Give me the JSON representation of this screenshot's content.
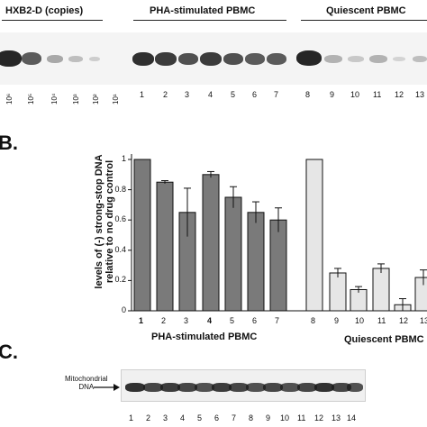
{
  "panelA": {
    "hdr_hxb2": "HXB2-D (copies)",
    "hdr_pha": "PHA-stimulated PBMC",
    "hdr_quiescent": "Quiescent PBMC",
    "standards": [
      "10⁶",
      "10⁵",
      "10⁴",
      "10³",
      "10²",
      "10¹"
    ],
    "lanes": [
      "1",
      "2",
      "3",
      "4",
      "5",
      "6",
      "7",
      "8",
      "9",
      "10",
      "11",
      "12",
      "13"
    ]
  },
  "panelB": {
    "label": "B.",
    "ylabel_line1": "levels of (-) strong-stop DNA",
    "ylabel_line2": "relative to no drug control",
    "group1": "PHA-stimulated PBMC",
    "group2": "Quiescent PBMC"
  },
  "panelC": {
    "label": "C.",
    "mito_line1": "Mitochondrial",
    "mito_line2": "DNA",
    "lanes": [
      "1",
      "2",
      "3",
      "4",
      "5",
      "6",
      "7",
      "8",
      "9",
      "10",
      "11",
      "12",
      "13",
      "14"
    ]
  },
  "chart_data": {
    "type": "bar",
    "categories": [
      "1",
      "2",
      "3",
      "4",
      "5",
      "6",
      "7",
      "8",
      "9",
      "10",
      "11",
      "12",
      "13"
    ],
    "values": [
      1.0,
      0.85,
      0.65,
      0.9,
      0.75,
      0.65,
      0.6,
      1.0,
      0.25,
      0.14,
      0.28,
      0.04,
      0.22
    ],
    "errors": [
      0.0,
      0.01,
      0.16,
      0.02,
      0.07,
      0.07,
      0.08,
      0.0,
      0.03,
      0.02,
      0.03,
      0.04,
      0.05
    ],
    "groups": [
      "PHA-stimulated PBMC",
      "Quiescent PBMC"
    ],
    "ylabel": "levels of (-) strong-stop DNA relative to no drug control",
    "yticks": [
      "0",
      "0.2",
      "0.4",
      "0.6",
      "0.8",
      "1"
    ],
    "ylim": [
      0,
      1.0
    ],
    "colors": {
      "pha": "#7a7a7a",
      "quiescent": "#e6e6e6"
    }
  }
}
